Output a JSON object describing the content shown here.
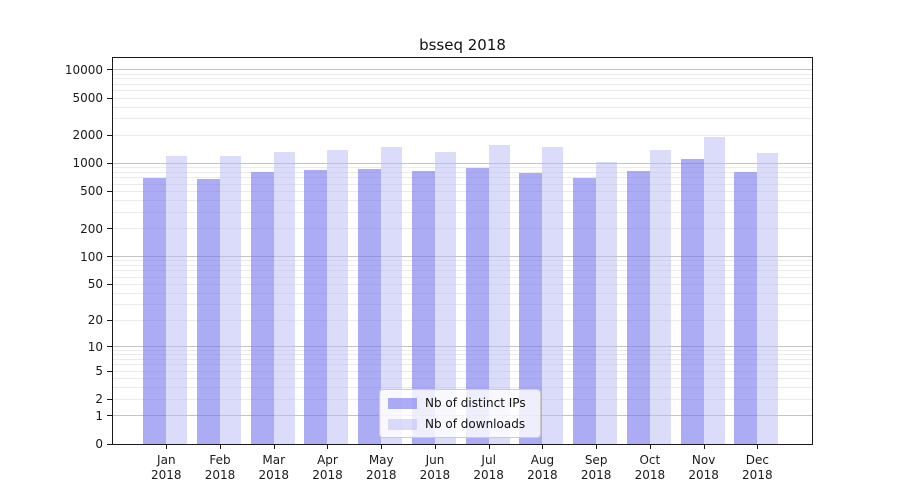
{
  "chart_data": {
    "type": "bar",
    "title": "bsseq 2018",
    "categories": [
      "Jan 2018",
      "Feb 2018",
      "Mar 2018",
      "Apr 2018",
      "May 2018",
      "Jun 2018",
      "Jul 2018",
      "Aug 2018",
      "Sep 2018",
      "Oct 2018",
      "Nov 2018",
      "Dec 2018"
    ],
    "series": [
      {
        "name": "Nb of distinct IPs",
        "color": "rgba(121,121,239,0.62)",
        "rendered_color": "#acacf5",
        "values": [
          700,
          680,
          800,
          840,
          870,
          820,
          890,
          790,
          690,
          830,
          1110,
          800
        ]
      },
      {
        "name": "Nb of downloads",
        "color": "rgba(186,186,246,0.52)",
        "rendered_color": "#dbdbfa",
        "values": [
          1200,
          1190,
          1310,
          1390,
          1500,
          1320,
          1580,
          1490,
          1040,
          1390,
          1900,
          1290
        ]
      }
    ],
    "yticks": [
      0,
      1,
      2,
      5,
      10,
      20,
      50,
      100,
      200,
      500,
      1000,
      2000,
      5000,
      10000
    ],
    "ylim": [
      0,
      13400
    ],
    "yscale": "log10(value+1)",
    "grid": "horizontal, major and minor",
    "legend_position": "lower center",
    "axis_color": "#1a1a1a",
    "major_grid_color": "#c3c3c3",
    "minor_grid_color": "#ebebeb"
  }
}
